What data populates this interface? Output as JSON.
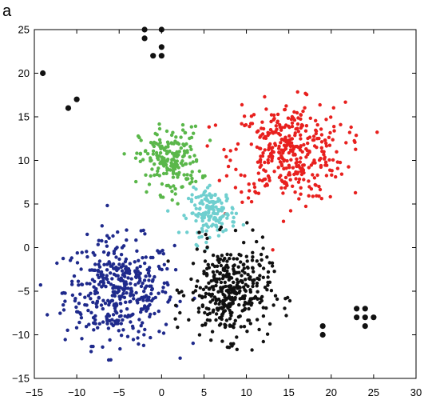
{
  "panel_label": "a",
  "chart_data": {
    "type": "scatter",
    "title": "",
    "xlabel": "",
    "ylabel": "",
    "xlim": [
      -15,
      30
    ],
    "ylim": [
      -15,
      25
    ],
    "xticks": [
      -15,
      -10,
      -5,
      0,
      5,
      10,
      15,
      20,
      25,
      30
    ],
    "yticks": [
      -15,
      -10,
      -5,
      0,
      5,
      10,
      15,
      20,
      25
    ],
    "xtick_labels": [
      "−15",
      "−10",
      "−5",
      "0",
      "5",
      "10",
      "15",
      "20",
      "25",
      "30"
    ],
    "ytick_labels": [
      "−15",
      "−10",
      "−5",
      "0",
      "5",
      "10",
      "15",
      "20",
      "25"
    ],
    "grid": false,
    "legend": "none",
    "clusters": [
      {
        "color": "#1f2a8c",
        "center": [
          -5,
          -5
        ],
        "spread": [
          3.2,
          3.0
        ],
        "count": 420
      },
      {
        "color": "#e8201e",
        "center": [
          15,
          11
        ],
        "spread": [
          3.3,
          2.8
        ],
        "count": 380
      },
      {
        "color": "#5ab74a",
        "center": [
          1,
          10
        ],
        "spread": [
          1.8,
          1.9
        ],
        "count": 200
      },
      {
        "color": "#6fcfcf",
        "center": [
          6,
          4
        ],
        "spread": [
          1.4,
          1.3
        ],
        "count": 150
      },
      {
        "color": "#111111",
        "center": [
          8,
          -5
        ],
        "spread": [
          2.4,
          2.7
        ],
        "count": 380
      }
    ],
    "outlier_color": "#111111",
    "outliers": [
      [
        -14,
        20
      ],
      [
        -11,
        16
      ],
      [
        -10,
        17
      ],
      [
        -2,
        25
      ],
      [
        -2,
        24
      ],
      [
        0,
        25
      ],
      [
        -1,
        22
      ],
      [
        0,
        22
      ],
      [
        0,
        23
      ],
      [
        19,
        -9
      ],
      [
        19,
        -10
      ],
      [
        23,
        -7
      ],
      [
        24,
        -7
      ],
      [
        23,
        -8
      ],
      [
        24,
        -8
      ],
      [
        25,
        -8
      ],
      [
        24,
        -9
      ]
    ]
  }
}
